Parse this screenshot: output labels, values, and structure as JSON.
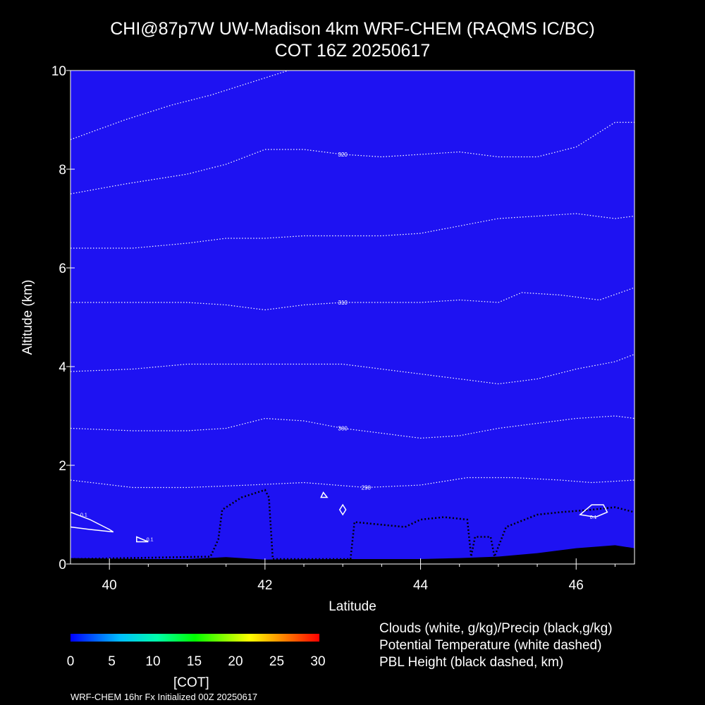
{
  "title_line1": "CHI@87p7W UW-Madison 4km WRF-CHEM (RAQMS IC/BC)",
  "title_line2": "COT 16Z 20250617",
  "chart_data": {
    "type": "contour",
    "xlabel": "Latitude",
    "ylabel": "Altitude (km)",
    "xlim": [
      39.5,
      46.75
    ],
    "ylim": [
      0,
      10
    ],
    "xticks": [
      40,
      42,
      44,
      46
    ],
    "yticks": [
      0,
      2,
      4,
      6,
      8,
      10
    ],
    "field": {
      "name": "COT",
      "value": 0,
      "color": "#1e12f2"
    },
    "theta_contours": [
      {
        "level": 290,
        "label": "290",
        "points": [
          [
            39.5,
            1.7
          ],
          [
            40.3,
            1.55
          ],
          [
            41.0,
            1.55
          ],
          [
            41.8,
            1.6
          ],
          [
            42.5,
            1.65
          ],
          [
            43.3,
            1.55
          ],
          [
            44.0,
            1.6
          ],
          [
            44.6,
            1.75
          ],
          [
            45.2,
            1.75
          ],
          [
            45.8,
            1.7
          ],
          [
            46.2,
            1.65
          ],
          [
            46.75,
            1.7
          ]
        ]
      },
      {
        "level": 300,
        "label": "300",
        "points": [
          [
            39.5,
            2.75
          ],
          [
            40.3,
            2.7
          ],
          [
            41.0,
            2.7
          ],
          [
            41.5,
            2.75
          ],
          [
            42.0,
            2.95
          ],
          [
            42.5,
            2.9
          ],
          [
            43.0,
            2.75
          ],
          [
            43.5,
            2.65
          ],
          [
            44.0,
            2.55
          ],
          [
            44.5,
            2.6
          ],
          [
            45.0,
            2.75
          ],
          [
            45.5,
            2.85
          ],
          [
            46.0,
            2.95
          ],
          [
            46.5,
            3.0
          ],
          [
            46.75,
            2.95
          ]
        ]
      },
      {
        "level": 305,
        "label": "",
        "points": [
          [
            39.5,
            3.9
          ],
          [
            40.3,
            3.95
          ],
          [
            41.0,
            4.05
          ],
          [
            41.5,
            4.05
          ],
          [
            42.0,
            4.05
          ],
          [
            42.5,
            4.05
          ],
          [
            43.0,
            4.05
          ],
          [
            43.5,
            3.95
          ],
          [
            44.0,
            3.85
          ],
          [
            44.5,
            3.75
          ],
          [
            45.0,
            3.65
          ],
          [
            45.5,
            3.75
          ],
          [
            46.0,
            3.95
          ],
          [
            46.5,
            4.1
          ],
          [
            46.75,
            4.25
          ]
        ]
      },
      {
        "level": 310,
        "label": "310",
        "points": [
          [
            39.5,
            5.3
          ],
          [
            40.3,
            5.3
          ],
          [
            41.0,
            5.3
          ],
          [
            41.5,
            5.25
          ],
          [
            42.0,
            5.15
          ],
          [
            42.5,
            5.25
          ],
          [
            43.0,
            5.3
          ],
          [
            43.5,
            5.3
          ],
          [
            44.0,
            5.3
          ],
          [
            44.5,
            5.35
          ],
          [
            45.0,
            5.3
          ],
          [
            45.3,
            5.5
          ],
          [
            45.8,
            5.45
          ],
          [
            46.3,
            5.35
          ],
          [
            46.75,
            5.6
          ]
        ]
      },
      {
        "level": 315,
        "label": "",
        "points": [
          [
            39.5,
            6.4
          ],
          [
            40.3,
            6.4
          ],
          [
            41.0,
            6.5
          ],
          [
            41.5,
            6.6
          ],
          [
            42.0,
            6.6
          ],
          [
            42.5,
            6.65
          ],
          [
            43.0,
            6.65
          ],
          [
            43.5,
            6.65
          ],
          [
            44.0,
            6.7
          ],
          [
            44.5,
            6.85
          ],
          [
            45.0,
            7.0
          ],
          [
            45.5,
            7.05
          ],
          [
            46.0,
            7.1
          ],
          [
            46.5,
            7.0
          ],
          [
            46.75,
            7.05
          ]
        ]
      },
      {
        "level": 320,
        "label": "320",
        "points": [
          [
            39.5,
            7.5
          ],
          [
            40.2,
            7.7
          ],
          [
            41.0,
            7.9
          ],
          [
            41.5,
            8.1
          ],
          [
            42.0,
            8.4
          ],
          [
            42.5,
            8.4
          ],
          [
            43.0,
            8.3
          ],
          [
            43.5,
            8.25
          ],
          [
            44.0,
            8.3
          ],
          [
            44.5,
            8.35
          ],
          [
            45.0,
            8.25
          ],
          [
            45.5,
            8.25
          ],
          [
            46.0,
            8.45
          ],
          [
            46.5,
            8.95
          ],
          [
            46.75,
            8.95
          ]
        ]
      },
      {
        "level": 325,
        "label": "",
        "points": [
          [
            39.5,
            8.6
          ],
          [
            40.2,
            9.0
          ],
          [
            40.8,
            9.3
          ],
          [
            41.3,
            9.5
          ],
          [
            41.8,
            9.75
          ],
          [
            42.3,
            10.0
          ],
          [
            43.0,
            10.1
          ],
          [
            44.0,
            10.1
          ],
          [
            44.6,
            10.05
          ],
          [
            45.2,
            10.1
          ],
          [
            46.75,
            10.1
          ]
        ]
      }
    ],
    "pbl_height": {
      "points": [
        [
          39.5,
          0.1
        ],
        [
          41.3,
          0.15
        ],
        [
          41.4,
          0.5
        ],
        [
          41.45,
          1.1
        ],
        [
          41.7,
          1.35
        ],
        [
          42.0,
          1.5
        ],
        [
          42.05,
          1.35
        ],
        [
          42.1,
          0.1
        ],
        [
          43.1,
          0.1
        ],
        [
          43.15,
          0.85
        ],
        [
          43.8,
          0.75
        ],
        [
          44.0,
          0.9
        ],
        [
          44.3,
          0.95
        ],
        [
          44.6,
          0.9
        ],
        [
          44.65,
          0.15
        ],
        [
          44.7,
          0.55
        ],
        [
          44.9,
          0.55
        ],
        [
          44.95,
          0.15
        ],
        [
          45.1,
          0.75
        ],
        [
          45.5,
          1.0
        ],
        [
          45.8,
          1.05
        ],
        [
          46.2,
          1.1
        ],
        [
          46.5,
          1.15
        ],
        [
          46.75,
          1.05
        ]
      ]
    },
    "cloud_contours": [
      {
        "label": "0.1",
        "points": [
          [
            39.5,
            1.05
          ],
          [
            39.75,
            0.9
          ],
          [
            40.0,
            0.7
          ],
          [
            40.05,
            0.65
          ],
          [
            39.75,
            0.7
          ],
          [
            39.5,
            0.75
          ]
        ]
      },
      {
        "label": "0.1",
        "points": [
          [
            40.35,
            0.55
          ],
          [
            40.5,
            0.45
          ],
          [
            40.35,
            0.45
          ]
        ]
      },
      {
        "label": "",
        "points": [
          [
            42.75,
            1.45
          ],
          [
            42.8,
            1.35
          ],
          [
            42.72,
            1.35
          ]
        ]
      },
      {
        "label": "",
        "points": [
          [
            43.0,
            1.2
          ],
          [
            43.04,
            1.1
          ],
          [
            43.0,
            1.0
          ],
          [
            42.96,
            1.1
          ]
        ]
      },
      {
        "label": "0.1",
        "points": [
          [
            46.05,
            1.0
          ],
          [
            46.2,
            1.2
          ],
          [
            46.35,
            1.2
          ],
          [
            46.4,
            1.05
          ],
          [
            46.25,
            0.95
          ]
        ]
      }
    ],
    "terrain": {
      "points": [
        [
          39.5,
          0.12
        ],
        [
          40.5,
          0.1
        ],
        [
          41.0,
          0.1
        ],
        [
          41.5,
          0.14
        ],
        [
          42.0,
          0.09
        ],
        [
          43.0,
          0.1
        ],
        [
          44.0,
          0.1
        ],
        [
          44.5,
          0.12
        ],
        [
          45.0,
          0.15
        ],
        [
          45.5,
          0.22
        ],
        [
          46.0,
          0.32
        ],
        [
          46.5,
          0.38
        ],
        [
          46.75,
          0.32
        ]
      ]
    },
    "colorbar": {
      "label": "[COT]",
      "min": 0,
      "max": 30,
      "ticks": [
        0,
        5,
        10,
        15,
        20,
        25,
        30
      ]
    }
  },
  "legend": [
    "Clouds (white, g/kg)/Precip (black,g/kg)",
    "Potential Temperature (white dashed)",
    "PBL Height (black dashed, km)"
  ],
  "footer": "WRF-CHEM 16hr  Fx Initialized 00Z 20250617",
  "colors": {
    "background": "#000000",
    "cot_zero": "#1e12f2"
  }
}
